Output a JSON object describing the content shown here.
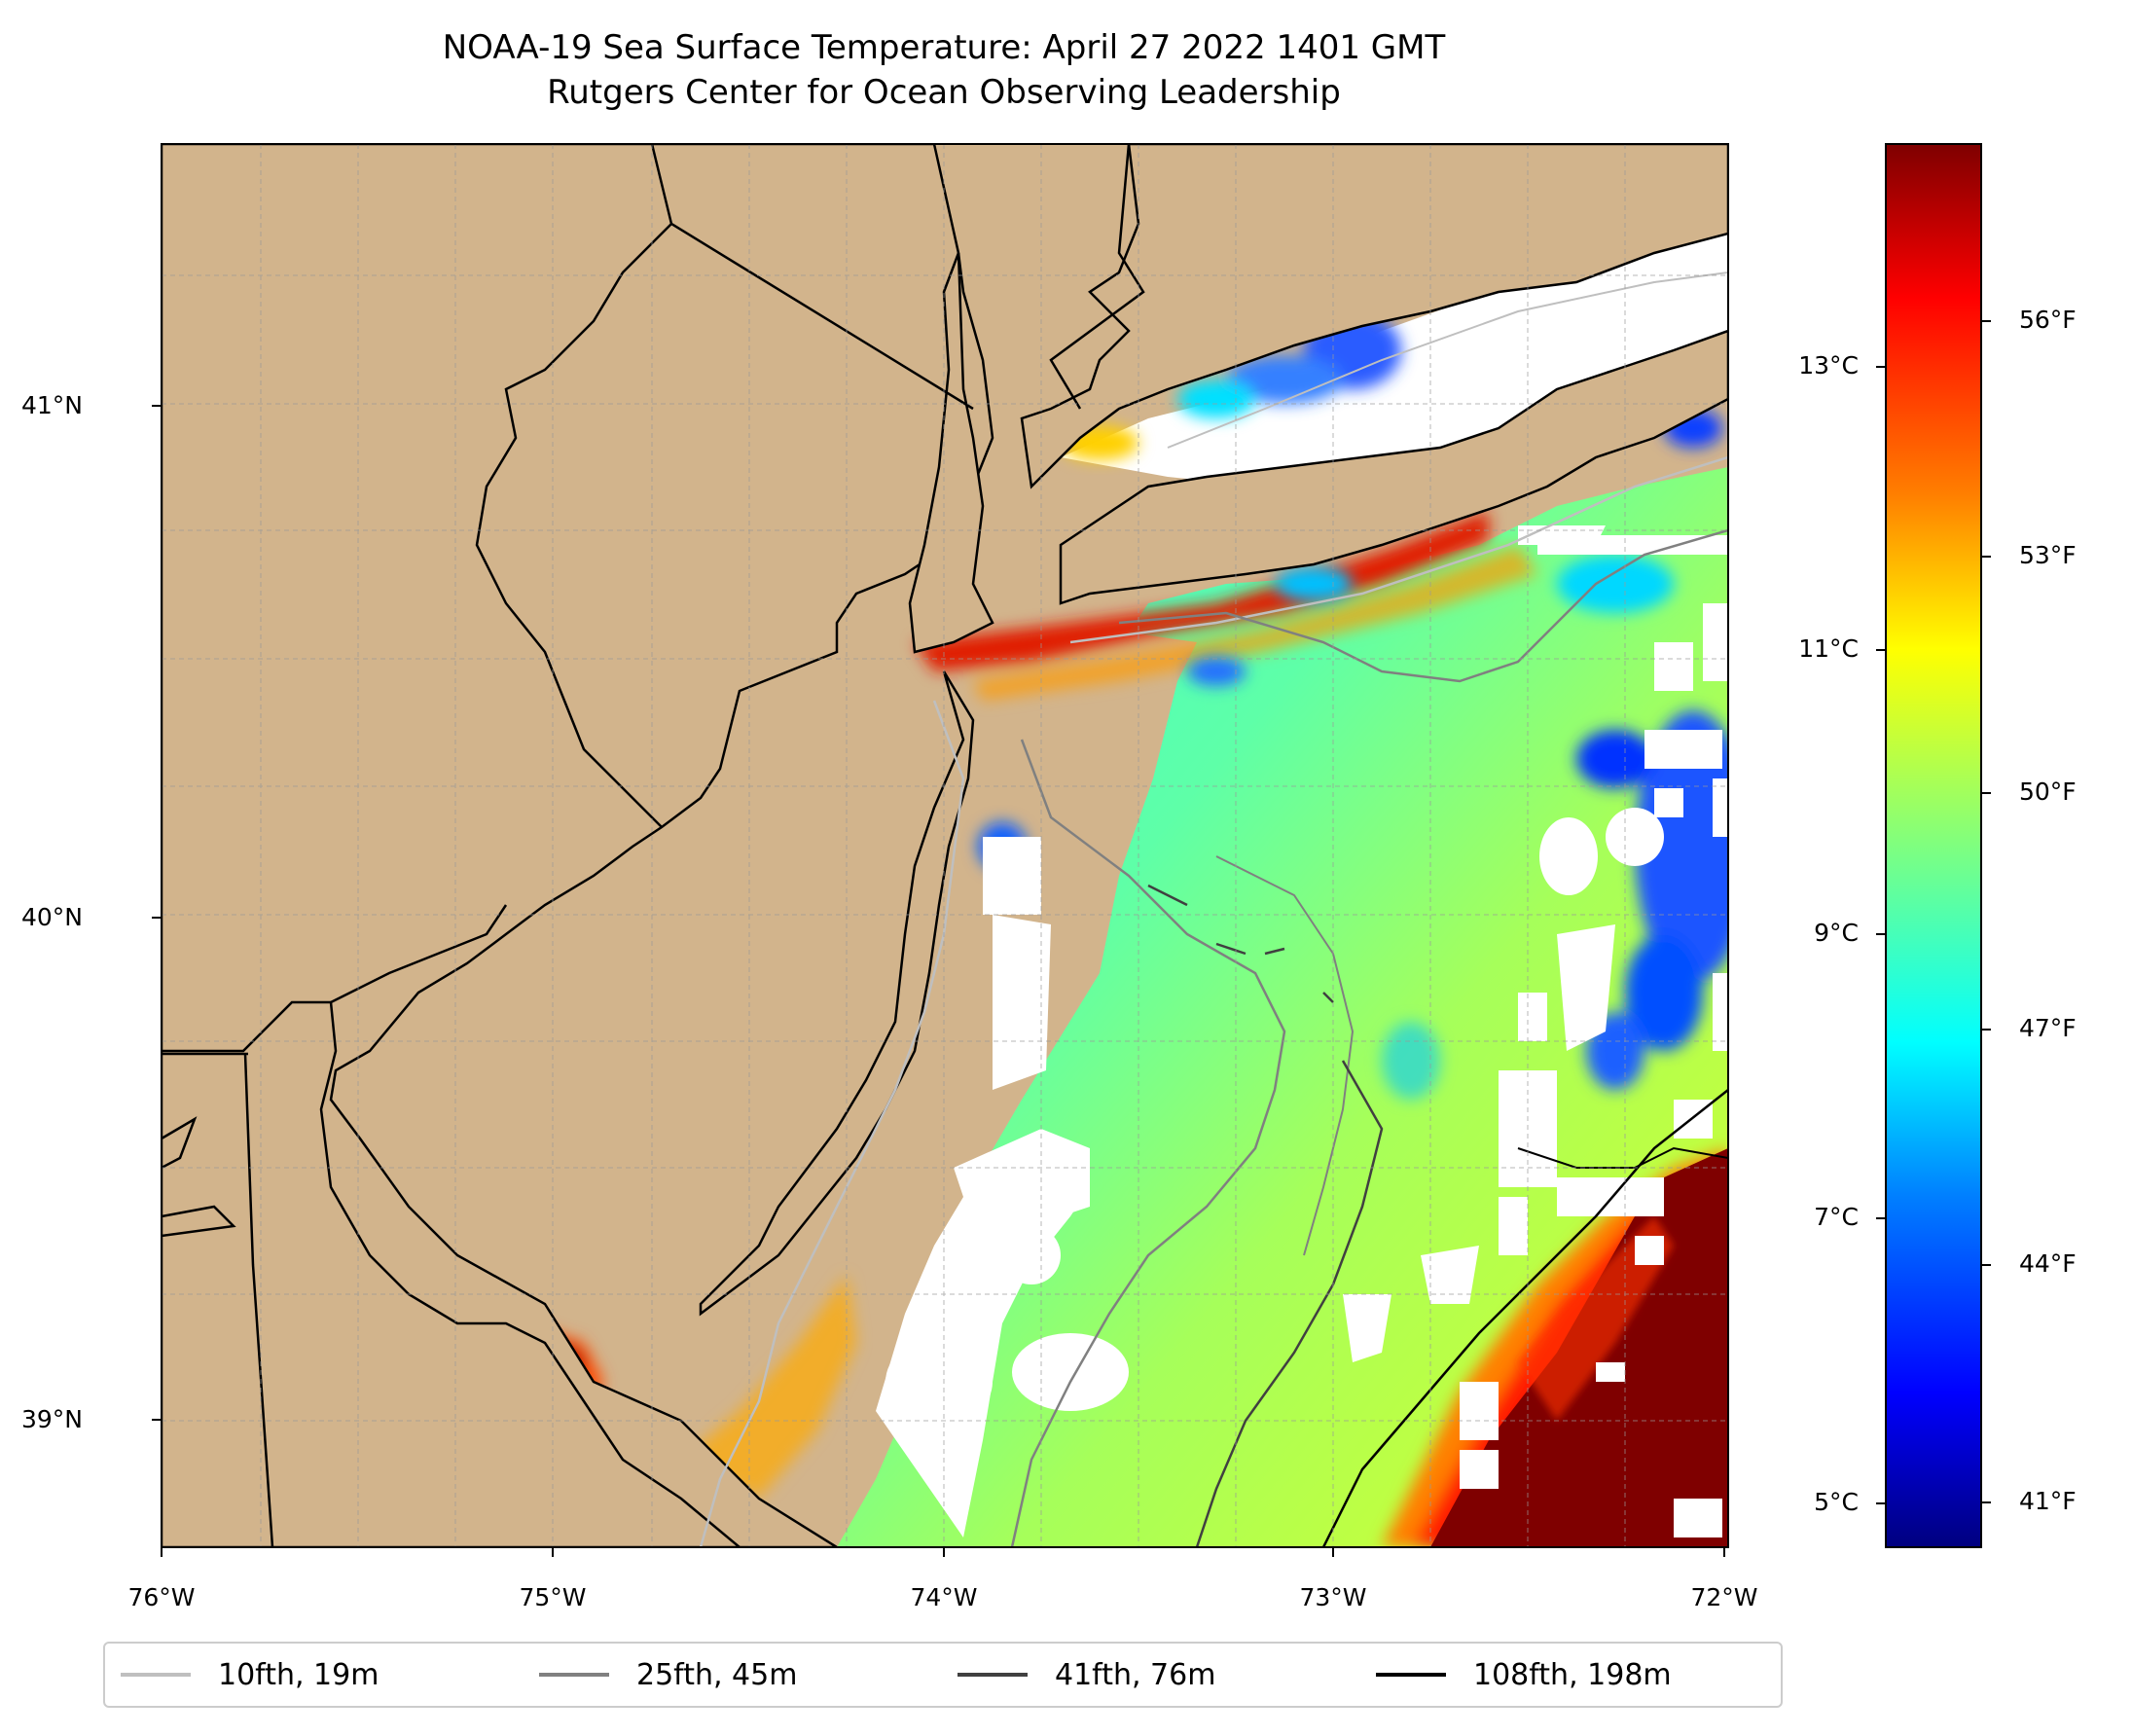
{
  "title": {
    "line1": "NOAA-19 Sea Surface Temperature: April 27 2022 1401 GMT",
    "line2": "Rutgers Center for Ocean Observing Leadership"
  },
  "map": {
    "type": "sea-surface-temperature-map",
    "lon_range": [
      -76,
      -72
    ],
    "lat_range": [
      38.74,
      41.5
    ],
    "land_color": "#d2b48c",
    "grid": true,
    "lat_ticks": [
      "41°N",
      "40°N",
      "39°N"
    ],
    "lon_ticks": [
      "76°W",
      "75°W",
      "74°W",
      "73°W",
      "72°W"
    ]
  },
  "colorbar": {
    "colormap": "jet",
    "celsius_range": [
      4.7,
      14.7
    ],
    "celsius_ticks": [
      "13°C",
      "11°C",
      "9°C",
      "7°C",
      "5°C"
    ],
    "fahrenheit_ticks": [
      "56°F",
      "53°F",
      "50°F",
      "47°F",
      "44°F",
      "41°F"
    ],
    "colors": [
      "#00007f",
      "#0000ff",
      "#007fff",
      "#00ffff",
      "#7fff7f",
      "#ffff00",
      "#ff7f00",
      "#ff0000",
      "#7f0000"
    ]
  },
  "legend": {
    "items": [
      {
        "label": "10fth, 19m",
        "color": "#bfbfbf"
      },
      {
        "label": "25fth, 45m",
        "color": "#808080"
      },
      {
        "label": "41fth, 76m",
        "color": "#404040"
      },
      {
        "label": "108fth, 198m",
        "color": "#000000"
      }
    ],
    "placement": "bottom-center"
  }
}
